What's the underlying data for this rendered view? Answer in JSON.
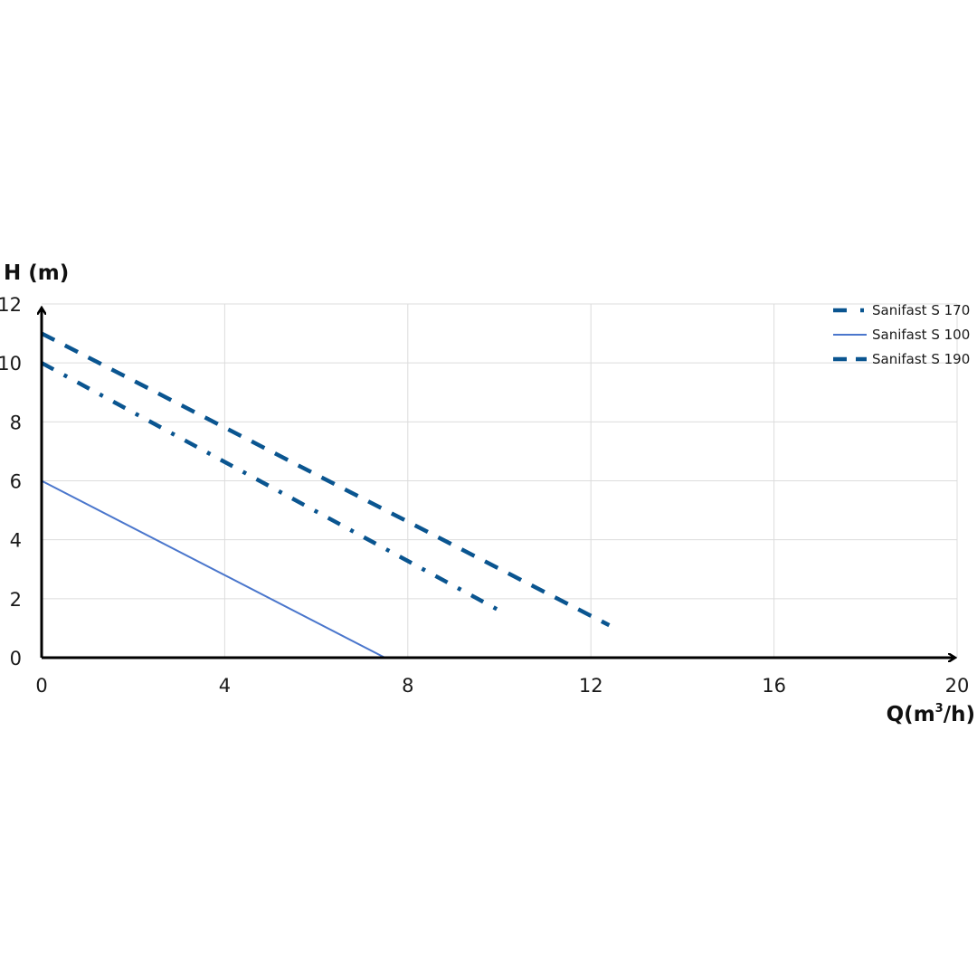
{
  "chart_data": {
    "type": "line",
    "ylabel": "H (m)",
    "xlabel": {
      "main": "Q(m",
      "sup": "3",
      "tail": "/h)"
    },
    "xlim": [
      0,
      20
    ],
    "ylim": [
      0,
      12
    ],
    "x_ticks": [
      "0",
      "4",
      "8",
      "12",
      "16",
      "20"
    ],
    "y_ticks": [
      "0",
      "2",
      "4",
      "6",
      "8",
      "10",
      "12"
    ],
    "grid": true,
    "legend_position": "top-right",
    "series": [
      {
        "name": "Sanifast S 170",
        "style": "dash-dot",
        "color": "#0a5590",
        "x": [
          0,
          10
        ],
        "y": [
          10,
          1.6
        ]
      },
      {
        "name": "Sanifast S 100",
        "style": "solid",
        "color": "#4a76cc",
        "x": [
          0,
          7.5
        ],
        "y": [
          6,
          0
        ]
      },
      {
        "name": "Sanifast S 190",
        "style": "dash",
        "color": "#0a5590",
        "x": [
          0,
          12.4
        ],
        "y": [
          11,
          1.1
        ]
      }
    ]
  }
}
